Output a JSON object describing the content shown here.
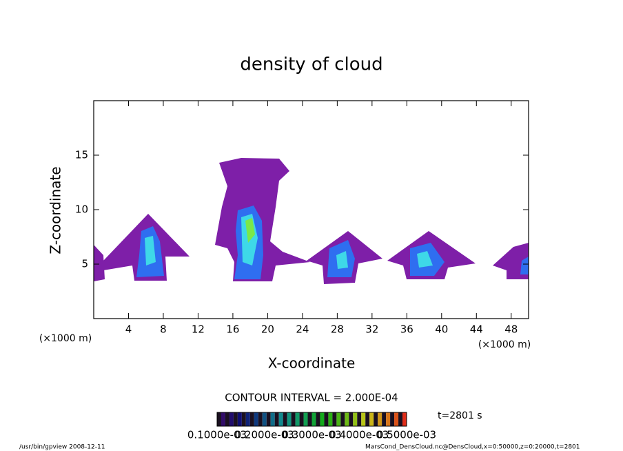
{
  "chart_data": {
    "type": "contour",
    "title": "density of cloud",
    "xlabel": "X-coordinate",
    "ylabel": "Z-coordinate",
    "xunit": "(×1000 m)",
    "yunit": "(×1000 m)",
    "xlim": [
      0,
      50
    ],
    "xticks": [
      4,
      8,
      12,
      16,
      20,
      24,
      28,
      32,
      36,
      40,
      44,
      48
    ],
    "ylim": [
      0,
      20
    ],
    "yticks": [
      5,
      10,
      15
    ],
    "contour_interval": "CONTOUR INTERVAL = 2.000E-04",
    "time_label": "t=2801 s",
    "clim": [
      0.0001,
      0.0005
    ],
    "cticks": [
      {
        "value": 0.0001,
        "label": "0.1000e-03"
      },
      {
        "value": 0.0002,
        "label": "0.2000e-03"
      },
      {
        "value": 0.0003,
        "label": "0.3000e-03"
      },
      {
        "value": 0.0004,
        "label": "0.4000e-03"
      },
      {
        "value": 0.0005,
        "label": "0.5000e-03"
      }
    ],
    "footer_left": "/usr/bin/gpview  2008-12-11",
    "footer_right": "MarsCond_DensCloud.nc@DensCloud,x=0:50000,z=0:20000,t=2801"
  }
}
